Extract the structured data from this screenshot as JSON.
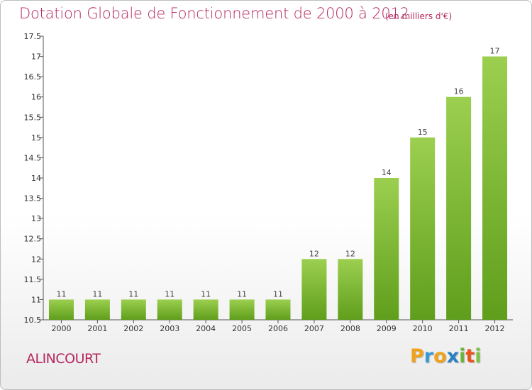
{
  "title": "Dotation Globale de Fonctionnement de 2000 à 2012",
  "subtitle": "(en milliers d'€)",
  "commune": "ALINCOURT",
  "logo": {
    "letters": [
      "P",
      "r",
      "o",
      "x",
      "i",
      "t",
      "i"
    ],
    "colors": [
      "#f0a21b",
      "#3a9ad9",
      "#f0a21b",
      "#2b7fc3",
      "#6cb33f",
      "#e8541c",
      "#7cc243"
    ]
  },
  "colors": {
    "title": "#b5275e",
    "bar_top": "#9ccf4f",
    "bar_bottom": "#5f9e1c",
    "axis": "#555555"
  },
  "chart_data": {
    "type": "bar",
    "categories": [
      "2000",
      "2001",
      "2002",
      "2003",
      "2004",
      "2005",
      "2006",
      "2007",
      "2008",
      "2009",
      "2010",
      "2011",
      "2012"
    ],
    "values": [
      11,
      11,
      11,
      11,
      11,
      11,
      11,
      12,
      12,
      14,
      15,
      16,
      17
    ],
    "ylim": [
      10.5,
      17.5
    ],
    "yticks": [
      "10.5",
      "11",
      "11.5",
      "12",
      "12.5",
      "13",
      "13.5",
      "14",
      "14.5",
      "15",
      "15.5",
      "16",
      "16.5",
      "17",
      "17.5"
    ],
    "grid": false,
    "xlabel": "",
    "ylabel": ""
  }
}
